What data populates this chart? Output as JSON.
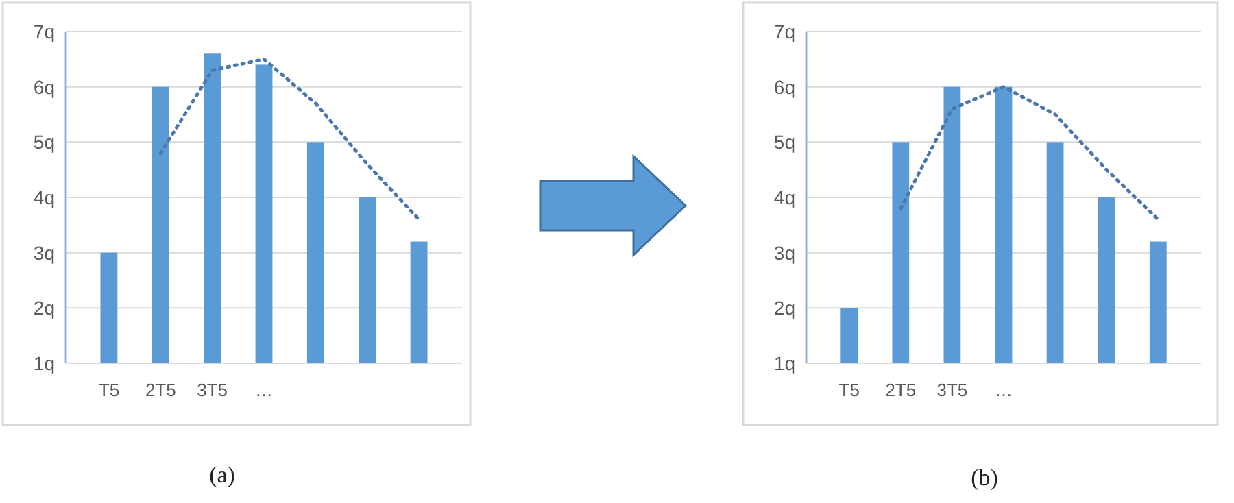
{
  "chart_data": [
    {
      "type": "bar",
      "categories": [
        "T5",
        "2T5",
        "3T5",
        "…",
        null,
        null,
        null
      ],
      "series": [
        {
          "color": "#5b9bd5",
          "values": [
            3,
            6,
            6.6,
            6.4,
            5,
            4,
            3.2
          ]
        },
        {
          "type": "line",
          "color": "#4a78ad",
          "line_style": "dotted",
          "marker": "none",
          "values": [
            null,
            4.8,
            6.3,
            6.5,
            5.7,
            4.6,
            3.6
          ]
        }
      ],
      "ylim": [
        1,
        7
      ],
      "yticks": [
        {
          "value": 1,
          "label": "1q"
        },
        {
          "value": 2,
          "label": "2q"
        },
        {
          "value": 3,
          "label": "3q"
        },
        {
          "value": 4,
          "label": "4q"
        },
        {
          "value": 5,
          "label": "5q"
        },
        {
          "value": 6,
          "label": "6q"
        },
        {
          "value": 7,
          "label": "7q"
        }
      ],
      "grid": "y",
      "annotations": [
        "(a)"
      ]
    },
    {
      "type": "bar",
      "categories": [
        "T5",
        "2T5",
        "3T5",
        "…",
        null,
        null,
        null
      ],
      "series": [
        {
          "color": "#5b9bd5",
          "values": [
            2,
            5,
            6,
            6,
            5,
            4,
            3.2
          ]
        },
        {
          "type": "line",
          "color": "#4a78ad",
          "line_style": "dotted",
          "marker": "none",
          "values": [
            null,
            3.8,
            5.6,
            6,
            5.5,
            4.5,
            3.6
          ]
        }
      ],
      "ylim": [
        1,
        7
      ],
      "yticks": [
        {
          "value": 1,
          "label": "1q"
        },
        {
          "value": 2,
          "label": "2q"
        },
        {
          "value": 3,
          "label": "3q"
        },
        {
          "value": 4,
          "label": "4q"
        },
        {
          "value": 5,
          "label": "5q"
        },
        {
          "value": 6,
          "label": "6q"
        },
        {
          "value": 7,
          "label": "7q"
        }
      ],
      "grid": "y",
      "annotations": [
        "(b)"
      ]
    }
  ]
}
